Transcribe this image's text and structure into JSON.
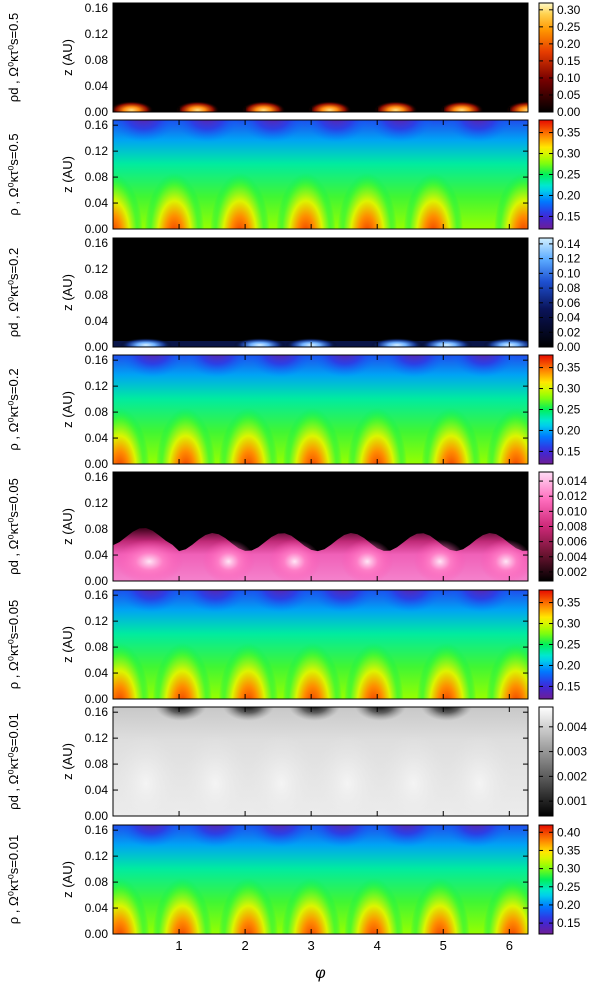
{
  "chart_data": {
    "type": "heatmap",
    "x_axis": {
      "label": "φ",
      "ticks": [
        1,
        2,
        3,
        4,
        5,
        6
      ],
      "range": [
        0,
        6.283
      ]
    },
    "y_axis": {
      "label": "z (AU)",
      "ticks": [
        "0.00",
        "0.04",
        "0.08",
        "0.12",
        "0.16"
      ],
      "range": [
        0,
        0.168
      ]
    },
    "panels": [
      {
        "quantity": "ρd",
        "omega_tau": "0.5",
        "row_label": "ρd , Ω⁰κτ⁰s=0.5",
        "colormap": "hot",
        "colorbar": {
          "ticks": [
            "0.00",
            "0.05",
            "0.10",
            "0.15",
            "0.20",
            "0.25",
            "0.30"
          ],
          "range": [
            0,
            0.32
          ]
        },
        "peaks_phi": [
          0.28,
          1.28,
          2.28,
          3.28,
          4.28,
          5.28,
          6.28
        ]
      },
      {
        "quantity": "ρ",
        "omega_tau": "0.5",
        "row_label": "ρ , Ω⁰κτ⁰s=0.5",
        "colormap": "rainbow",
        "colorbar": {
          "ticks": [
            "0.15",
            "0.20",
            "0.25",
            "0.30",
            "0.35"
          ],
          "range": [
            0.12,
            0.38
          ]
        },
        "peaks_phi": [
          0,
          0.93,
          1.92,
          2.92,
          3.85,
          4.85,
          6.22
        ]
      },
      {
        "quantity": "ρd",
        "omega_tau": "0.2",
        "row_label": "ρd , Ω⁰κτ⁰s=0.2",
        "colormap": "blue",
        "colorbar": {
          "ticks": [
            "0.00",
            "0.02",
            "0.04",
            "0.06",
            "0.08",
            "0.10",
            "0.12",
            "0.14"
          ],
          "range": [
            0,
            0.148
          ]
        },
        "peaks_phi": [
          0.5,
          2.22,
          3.0,
          4.3,
          5.05,
          6.0
        ]
      },
      {
        "quantity": "ρ",
        "omega_tau": "0.2",
        "row_label": "ρ , Ω⁰κτ⁰s=0.2",
        "colormap": "rainbow",
        "colorbar": {
          "ticks": [
            "0.15",
            "0.20",
            "0.25",
            "0.30",
            "0.35"
          ],
          "range": [
            0.12,
            0.38
          ]
        },
        "peaks_phi": [
          0.1,
          1.1,
          2.05,
          3.02,
          4.0,
          5.12,
          6.1
        ]
      },
      {
        "quantity": "ρd",
        "omega_tau": "0.05",
        "row_label": "ρd , Ω⁰κτ⁰s=0.05",
        "colormap": "pink",
        "colorbar": {
          "ticks": [
            "0.002",
            "0.004",
            "0.006",
            "0.008",
            "0.010",
            "0.012",
            "0.014"
          ],
          "range": [
            0.0008,
            0.0152
          ]
        },
        "peaks_phi": [
          0.55,
          1.75,
          2.75,
          3.85,
          4.95,
          5.95
        ]
      },
      {
        "quantity": "ρ",
        "omega_tau": "0.05",
        "row_label": "ρ , Ω⁰κτ⁰s=0.05",
        "colormap": "rainbow",
        "colorbar": {
          "ticks": [
            "0.15",
            "0.20",
            "0.25",
            "0.30",
            "0.35"
          ],
          "range": [
            0.12,
            0.38
          ]
        },
        "peaks_phi": [
          0.1,
          1.05,
          2.05,
          3.02,
          3.95,
          5.05,
          6.1
        ]
      },
      {
        "quantity": "ρd",
        "omega_tau": "0.01",
        "row_label": "ρd , Ω⁰κτ⁰s=0.01",
        "colormap": "gray",
        "colorbar": {
          "ticks": [
            "0.001",
            "0.002",
            "0.003",
            "0.004"
          ],
          "range": [
            0.0004,
            0.0048
          ]
        },
        "peaks_phi": [
          0.5,
          1.55,
          2.55,
          3.55,
          4.55,
          5.55
        ]
      },
      {
        "quantity": "ρ",
        "omega_tau": "0.01",
        "row_label": "ρ , Ω⁰κτ⁰s=0.01",
        "colormap": "rainbow",
        "colorbar": {
          "ticks": [
            "0.15",
            "0.20",
            "0.25",
            "0.30",
            "0.35",
            "0.40"
          ],
          "range": [
            0.12,
            0.42
          ]
        },
        "peaks_phi": [
          0.1,
          1.05,
          2.05,
          3.0,
          3.95,
          4.95,
          6.05
        ]
      }
    ]
  }
}
